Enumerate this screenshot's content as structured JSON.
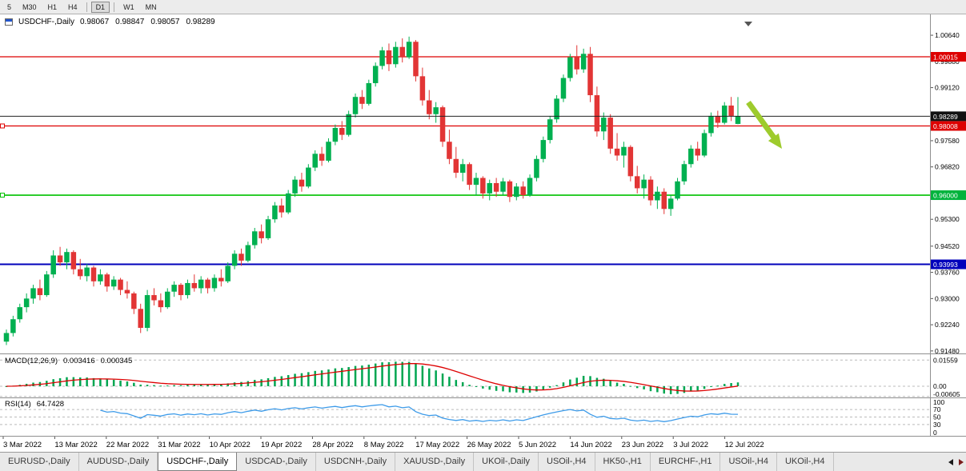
{
  "toolbar": {
    "timeframes": [
      "5",
      "M30",
      "H1",
      "H4",
      "D1",
      "W1",
      "MN"
    ],
    "active": "D1",
    "separators_after": [
      "H4",
      "D1"
    ]
  },
  "chart": {
    "symbol": "USDCHF-,Daily",
    "open": "0.98067",
    "high": "0.98847",
    "low": "0.98057",
    "close": "0.98289",
    "colors": {
      "up": "#00b050",
      "down": "#e23535",
      "background": "#ffffff",
      "current_line": "#222222"
    },
    "hlines": [
      {
        "price": 1.00015,
        "color": "#dd0000",
        "width": 1.2
      },
      {
        "price": 0.98008,
        "color": "#dd0000",
        "width": 1.2
      },
      {
        "price": 0.96,
        "color": "#00c000",
        "width": 1.6
      },
      {
        "price": 0.93993,
        "color": "#0000bb",
        "width": 2
      }
    ],
    "current_price": {
      "price": 0.98289,
      "color": "#222222"
    },
    "price_labels": [
      {
        "text": "1.00015",
        "price": 1.00015,
        "bg": "#dd0000",
        "fg": "#ffffff"
      },
      {
        "text": "0.98289",
        "price": 0.98289,
        "bg": "#111111",
        "fg": "#ffffff"
      },
      {
        "text": "0.98008",
        "price": 0.98008,
        "bg": "#dd0000",
        "fg": "#ffffff"
      },
      {
        "text": "0.96000",
        "price": 0.96,
        "bg": "#00b33c",
        "fg": "#ffffff"
      },
      {
        "text": "0.93993",
        "price": 0.93993,
        "bg": "#0000bb",
        "fg": "#ffffff"
      }
    ],
    "price_axis_ticks": [
      "1.00640",
      "0.99880",
      "0.99120",
      "0.97580",
      "0.96820",
      "0.95300",
      "0.94520",
      "0.93760",
      "0.93000",
      "0.92240",
      "0.91480"
    ]
  },
  "macd": {
    "name": "MACD(12,26,9)",
    "value_main": "0.003416",
    "value_signal": "0.000345",
    "axis_labels": [
      {
        "text": "0.01559",
        "value": 0.01559
      },
      {
        "text": "0.00",
        "value": 0
      },
      {
        "text": "-0.00605",
        "value": -0.00605
      }
    ],
    "histogram_color": "#00a651",
    "signal_color": "#dd0000"
  },
  "rsi": {
    "name": "RSI(14)",
    "value": "64.7428",
    "period": 14,
    "line_color": "#3d9be9",
    "levels": [
      70,
      50,
      30
    ],
    "axis_labels": [
      {
        "text": "100",
        "value": 100
      },
      {
        "text": "70",
        "value": 70
      },
      {
        "text": "50",
        "value": 50
      },
      {
        "text": "30",
        "value": 30
      },
      {
        "text": "0",
        "value": 0
      }
    ]
  },
  "dates": [
    "3 Mar 2022",
    "13 Mar 2022",
    "22 Mar 2022",
    "31 Mar 2022",
    "10 Apr 2022",
    "19 Apr 2022",
    "28 Apr 2022",
    "8 May 2022",
    "17 May 2022",
    "26 May 2022",
    "5 Jun 2022",
    "14 Jun 2022",
    "23 Jun 2022",
    "3 Jul 2022",
    "12 Jul 2022"
  ],
  "tabs": {
    "items": [
      "EURUSD-,Daily",
      "AUDUSD-,Daily",
      "USDCHF-,Daily",
      "USDCAD-,Daily",
      "USDCNH-,Daily",
      "XAUUSD-,Daily",
      "UKOil-,Daily",
      "USOil-,H4",
      "HK50-,H1",
      "EURCHF-,H1",
      "USOil-,H4",
      "UKOil-,H4"
    ],
    "active_index": 2
  },
  "annotations": {
    "arrow_color": "#9ecb2d"
  },
  "chart_data": {
    "type": "candlestick",
    "symbol": "USDCHF",
    "timeframe": "Daily",
    "ylim": [
      0.9148,
      1.0064
    ],
    "x_range": [
      "3 Mar 2022",
      "14 Jul 2022"
    ],
    "ohlc": [
      [
        0.9175,
        0.921,
        0.9165,
        0.92
      ],
      [
        0.92,
        0.925,
        0.919,
        0.924
      ],
      [
        0.924,
        0.9285,
        0.923,
        0.9275
      ],
      [
        0.9275,
        0.9315,
        0.926,
        0.93
      ],
      [
        0.93,
        0.934,
        0.9285,
        0.933
      ],
      [
        0.933,
        0.9355,
        0.9295,
        0.931
      ],
      [
        0.931,
        0.938,
        0.9305,
        0.937
      ],
      [
        0.937,
        0.944,
        0.936,
        0.9425
      ],
      [
        0.9425,
        0.945,
        0.9395,
        0.9405
      ],
      [
        0.9405,
        0.9445,
        0.9385,
        0.9435
      ],
      [
        0.9435,
        0.944,
        0.937,
        0.9385
      ],
      [
        0.9385,
        0.9415,
        0.9355,
        0.9365
      ],
      [
        0.9365,
        0.94,
        0.935,
        0.939
      ],
      [
        0.939,
        0.9395,
        0.9335,
        0.935
      ],
      [
        0.935,
        0.9385,
        0.934,
        0.937
      ],
      [
        0.937,
        0.9375,
        0.932,
        0.9335
      ],
      [
        0.9335,
        0.9365,
        0.9325,
        0.9355
      ],
      [
        0.9355,
        0.936,
        0.931,
        0.9325
      ],
      [
        0.9325,
        0.935,
        0.93,
        0.9315
      ],
      [
        0.9315,
        0.932,
        0.9255,
        0.927
      ],
      [
        0.927,
        0.9285,
        0.92,
        0.9215
      ],
      [
        0.9215,
        0.9325,
        0.9205,
        0.931
      ],
      [
        0.931,
        0.933,
        0.928,
        0.9295
      ],
      [
        0.9295,
        0.9315,
        0.926,
        0.9275
      ],
      [
        0.9275,
        0.933,
        0.927,
        0.932
      ],
      [
        0.932,
        0.935,
        0.9305,
        0.934
      ],
      [
        0.934,
        0.9345,
        0.9295,
        0.931
      ],
      [
        0.931,
        0.9355,
        0.93,
        0.9345
      ],
      [
        0.9345,
        0.937,
        0.932,
        0.933
      ],
      [
        0.933,
        0.9365,
        0.9315,
        0.9355
      ],
      [
        0.9355,
        0.936,
        0.9315,
        0.933
      ],
      [
        0.933,
        0.937,
        0.932,
        0.936
      ],
      [
        0.936,
        0.9385,
        0.9335,
        0.935
      ],
      [
        0.935,
        0.9405,
        0.9345,
        0.9395
      ],
      [
        0.9395,
        0.944,
        0.9385,
        0.943
      ],
      [
        0.943,
        0.9445,
        0.9395,
        0.941
      ],
      [
        0.941,
        0.9465,
        0.9405,
        0.9455
      ],
      [
        0.9455,
        0.9505,
        0.9445,
        0.9495
      ],
      [
        0.9495,
        0.9515,
        0.946,
        0.9475
      ],
      [
        0.9475,
        0.954,
        0.947,
        0.953
      ],
      [
        0.953,
        0.958,
        0.952,
        0.957
      ],
      [
        0.957,
        0.959,
        0.9535,
        0.955
      ],
      [
        0.955,
        0.9615,
        0.9545,
        0.9605
      ],
      [
        0.9605,
        0.9655,
        0.9595,
        0.9645
      ],
      [
        0.9645,
        0.9665,
        0.961,
        0.9625
      ],
      [
        0.9625,
        0.969,
        0.962,
        0.968
      ],
      [
        0.968,
        0.973,
        0.967,
        0.972
      ],
      [
        0.972,
        0.974,
        0.9685,
        0.97
      ],
      [
        0.97,
        0.9765,
        0.9695,
        0.9755
      ],
      [
        0.9755,
        0.9805,
        0.9745,
        0.9795
      ],
      [
        0.9795,
        0.9815,
        0.976,
        0.9775
      ],
      [
        0.9775,
        0.9845,
        0.977,
        0.9835
      ],
      [
        0.9835,
        0.9895,
        0.9825,
        0.9885
      ],
      [
        0.9885,
        0.9905,
        0.985,
        0.9865
      ],
      [
        0.9865,
        0.9935,
        0.986,
        0.9925
      ],
      [
        0.9925,
        0.9985,
        0.9915,
        0.9975
      ],
      [
        0.9975,
        1.003,
        0.9965,
        1.002
      ],
      [
        1.002,
        1.004,
        0.996,
        0.998
      ],
      [
        0.998,
        1.0045,
        0.997,
        1.003
      ],
      [
        1.003,
        1.0055,
        0.9985,
        1.0
      ],
      [
        1.0,
        1.006,
        0.9995,
        1.0045
      ],
      [
        1.0045,
        1.005,
        0.993,
        0.9945
      ],
      [
        0.9945,
        0.997,
        0.986,
        0.9875
      ],
      [
        0.9875,
        0.9905,
        0.982,
        0.9835
      ],
      [
        0.9835,
        0.987,
        0.981,
        0.9855
      ],
      [
        0.9855,
        0.986,
        0.974,
        0.9755
      ],
      [
        0.9755,
        0.979,
        0.969,
        0.9705
      ],
      [
        0.9705,
        0.974,
        0.965,
        0.9665
      ],
      [
        0.9665,
        0.9705,
        0.964,
        0.969
      ],
      [
        0.969,
        0.9695,
        0.9615,
        0.963
      ],
      [
        0.963,
        0.9665,
        0.96,
        0.965
      ],
      [
        0.965,
        0.9655,
        0.959,
        0.9605
      ],
      [
        0.9605,
        0.9645,
        0.9585,
        0.9635
      ],
      [
        0.9635,
        0.965,
        0.9595,
        0.961
      ],
      [
        0.961,
        0.965,
        0.96,
        0.964
      ],
      [
        0.964,
        0.9645,
        0.958,
        0.9595
      ],
      [
        0.9595,
        0.9635,
        0.9585,
        0.9625
      ],
      [
        0.9625,
        0.964,
        0.959,
        0.96
      ],
      [
        0.96,
        0.966,
        0.9595,
        0.965
      ],
      [
        0.965,
        0.9715,
        0.964,
        0.9705
      ],
      [
        0.9705,
        0.977,
        0.9695,
        0.976
      ],
      [
        0.976,
        0.983,
        0.975,
        0.982
      ],
      [
        0.982,
        0.989,
        0.981,
        0.988
      ],
      [
        0.988,
        0.995,
        0.987,
        0.994
      ],
      [
        0.994,
        1.001,
        0.993,
        1.0
      ],
      [
        1.0,
        1.0035,
        0.995,
        0.9965
      ],
      [
        0.9965,
        1.0025,
        0.9955,
        1.001
      ],
      [
        1.001,
        1.003,
        0.987,
        0.989
      ],
      [
        0.989,
        0.9915,
        0.977,
        0.9785
      ],
      [
        0.9785,
        0.984,
        0.976,
        0.9825
      ],
      [
        0.9825,
        0.9835,
        0.972,
        0.9735
      ],
      [
        0.9735,
        0.978,
        0.97,
        0.9715
      ],
      [
        0.9715,
        0.9755,
        0.968,
        0.974
      ],
      [
        0.974,
        0.9745,
        0.964,
        0.9655
      ],
      [
        0.9655,
        0.9685,
        0.9605,
        0.962
      ],
      [
        0.962,
        0.966,
        0.959,
        0.9645
      ],
      [
        0.9645,
        0.9655,
        0.957,
        0.9585
      ],
      [
        0.9585,
        0.9625,
        0.956,
        0.961
      ],
      [
        0.961,
        0.962,
        0.9545,
        0.956
      ],
      [
        0.956,
        0.96,
        0.954,
        0.959
      ],
      [
        0.959,
        0.965,
        0.9585,
        0.964
      ],
      [
        0.964,
        0.97,
        0.963,
        0.969
      ],
      [
        0.969,
        0.9745,
        0.968,
        0.9735
      ],
      [
        0.9735,
        0.9755,
        0.97,
        0.9715
      ],
      [
        0.9715,
        0.979,
        0.971,
        0.978
      ],
      [
        0.978,
        0.984,
        0.977,
        0.983
      ],
      [
        0.983,
        0.9845,
        0.9795,
        0.981
      ],
      [
        0.981,
        0.987,
        0.9805,
        0.986
      ],
      [
        0.986,
        0.9885,
        0.9815,
        0.983
      ],
      [
        0.98067,
        0.98847,
        0.98057,
        0.98289
      ]
    ]
  }
}
